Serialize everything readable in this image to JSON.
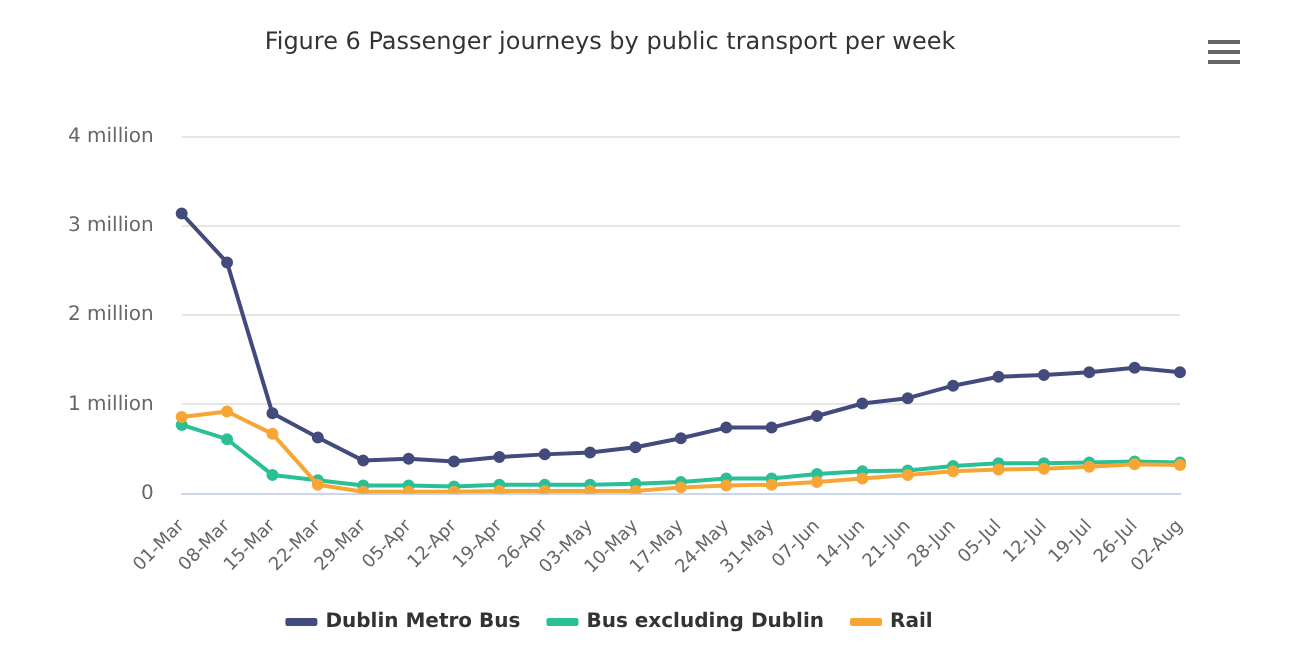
{
  "chart_data": {
    "type": "line",
    "title": "Figure 6 Passenger journeys by public transport per week",
    "categories": [
      "01-Mar",
      "08-Mar",
      "15-Mar",
      "22-Mar",
      "29-Mar",
      "05-Apr",
      "12-Apr",
      "19-Apr",
      "26-Apr",
      "03-May",
      "10-May",
      "17-May",
      "24-May",
      "31-May",
      "07-Jun",
      "14-Jun",
      "21-Jun",
      "28-Jun",
      "05-Jul",
      "12-Jul",
      "19-Jul",
      "26-Jul",
      "02-Aug"
    ],
    "series": [
      {
        "name": "Dublin Metro Bus",
        "color": "#434b7c",
        "values": [
          3140000,
          2590000,
          900000,
          630000,
          370000,
          390000,
          360000,
          410000,
          440000,
          460000,
          520000,
          620000,
          740000,
          740000,
          870000,
          1010000,
          1070000,
          1210000,
          1310000,
          1330000,
          1360000,
          1410000,
          1360000
        ]
      },
      {
        "name": "Bus excluding Dublin",
        "color": "#2bbf96",
        "values": [
          770000,
          610000,
          210000,
          150000,
          90000,
          90000,
          80000,
          100000,
          100000,
          100000,
          110000,
          130000,
          170000,
          170000,
          220000,
          250000,
          260000,
          310000,
          340000,
          340000,
          350000,
          360000,
          350000
        ]
      },
      {
        "name": "Rail",
        "color": "#f7a535",
        "values": [
          860000,
          920000,
          670000,
          100000,
          20000,
          20000,
          20000,
          30000,
          30000,
          30000,
          30000,
          70000,
          90000,
          100000,
          130000,
          170000,
          210000,
          250000,
          270000,
          280000,
          300000,
          330000,
          320000
        ]
      }
    ],
    "ylim": [
      0,
      4000000
    ],
    "yticks": [
      0,
      {
        "value": 1000000,
        "label": "1 million"
      },
      {
        "value": 2000000,
        "label": "2 million"
      },
      {
        "value": 3000000,
        "label": "3 million"
      },
      {
        "value": 4000000,
        "label": "4 million"
      }
    ],
    "grid": "y",
    "legend": "bottom",
    "marker": "circle",
    "line_style": "solid"
  }
}
